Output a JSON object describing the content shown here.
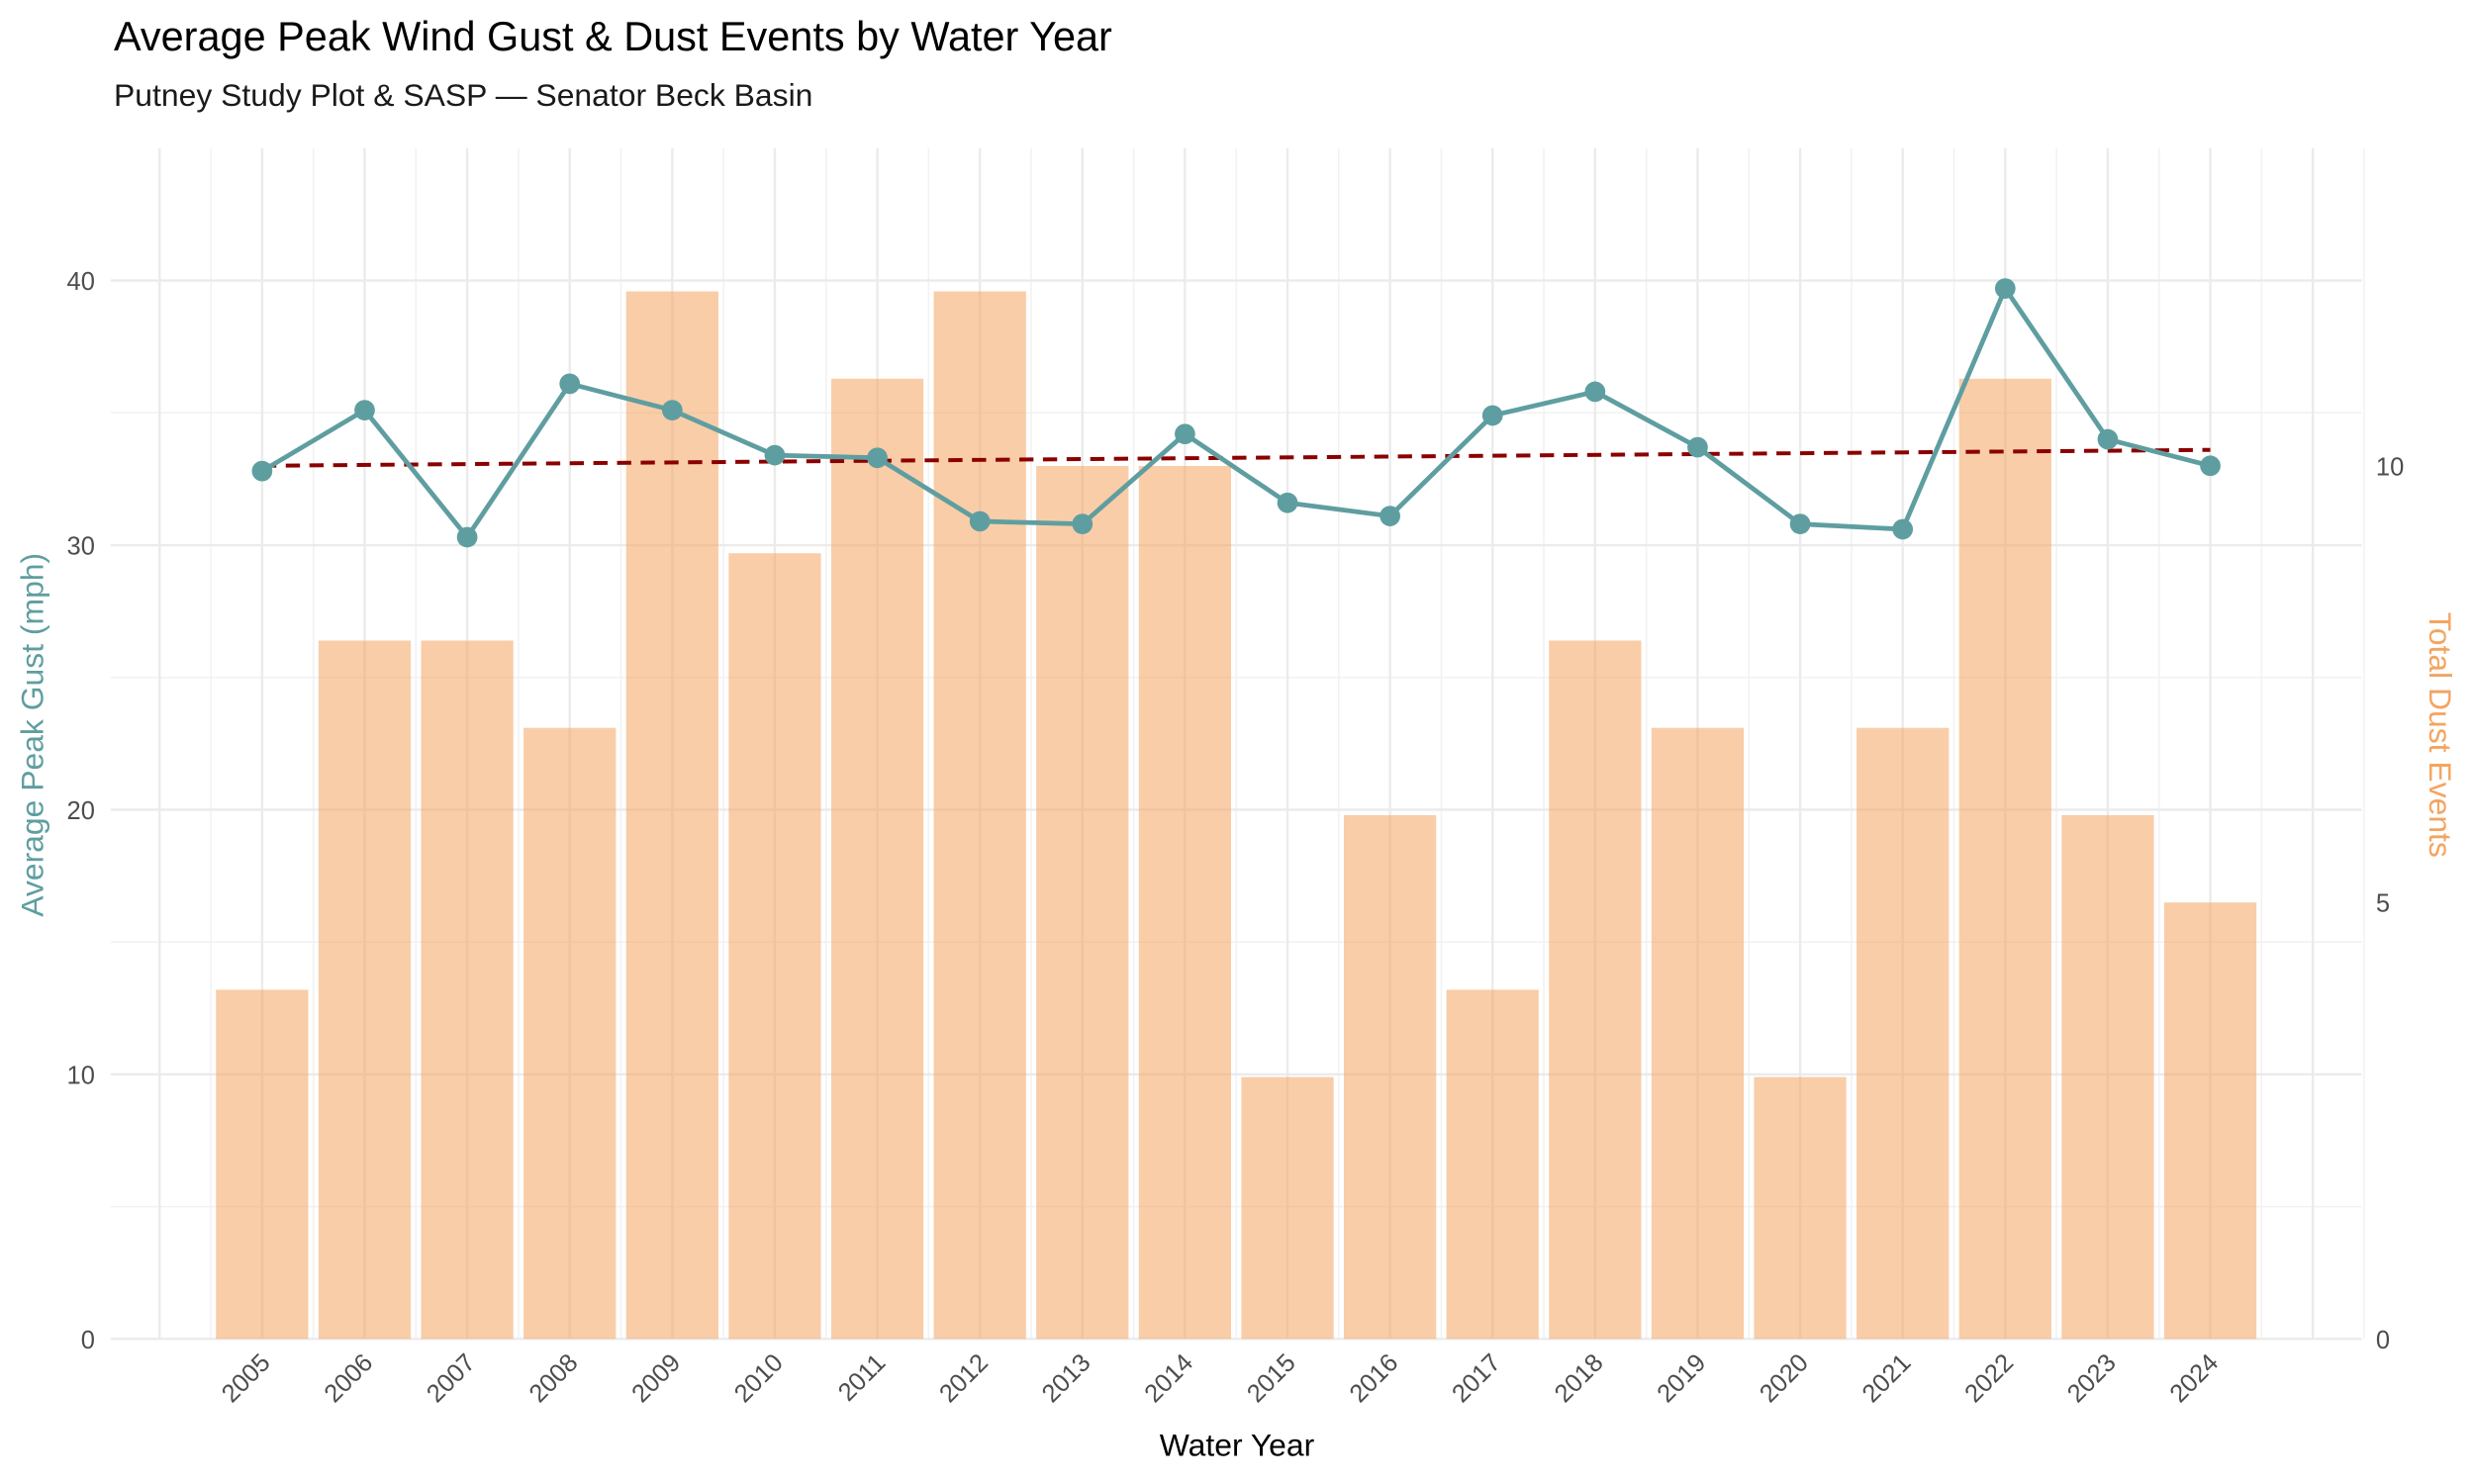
{
  "chart_data": {
    "type": "bar_line",
    "title": "Average Peak Wind Gust & Dust Events by Water Year",
    "subtitle": "Putney Study Plot & SASP — Senator Beck Basin",
    "x_label": "Water Year",
    "y_label": "Average Peak Gust (mph)",
    "y2_label": "Total Dust Events",
    "categories": [
      "2005",
      "2006",
      "2007",
      "2008",
      "2009",
      "2010",
      "2011",
      "2012",
      "2013",
      "2014",
      "2015",
      "2016",
      "2017",
      "2018",
      "2019",
      "2020",
      "2021",
      "2022",
      "2023",
      "2024"
    ],
    "series": [
      {
        "name": "Total Dust Events",
        "kind": "bar",
        "axis": "y2",
        "color": "#f4a460",
        "opacity": 0.55,
        "values": [
          4,
          8,
          8,
          7,
          12,
          9,
          11,
          12,
          10,
          10,
          3,
          6,
          4,
          8,
          7,
          3,
          7,
          11,
          6,
          5
        ]
      },
      {
        "name": "Average Peak Gust (mph)",
        "kind": "line",
        "color": "#5f9ea0",
        "values": [
          32.8,
          35.1,
          30.3,
          36.1,
          35.1,
          33.4,
          33.3,
          30.9,
          30.8,
          34.2,
          31.6,
          31.1,
          34.9,
          35.8,
          33.7,
          30.8,
          30.6,
          39.7,
          34.0,
          33.0
        ]
      }
    ],
    "trend": {
      "color": "#8b0000",
      "x": [
        "2005",
        "2024"
      ],
      "values": [
        33.0,
        33.6
      ]
    },
    "ylim": [
      0,
      45
    ],
    "yticks": [
      0,
      10,
      20,
      30,
      40
    ],
    "y2lim": [
      0,
      13.64
    ],
    "y2ticks": [
      0,
      5,
      10
    ],
    "grid": true
  }
}
